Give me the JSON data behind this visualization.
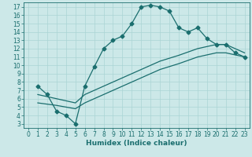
{
  "xlabel": "Humidex (Indice chaleur)",
  "bg_color": "#cce8e8",
  "line_color": "#1a6e6e",
  "xlim": [
    -0.5,
    23.5
  ],
  "ylim": [
    2.5,
    17.5
  ],
  "xticks": [
    0,
    1,
    2,
    3,
    4,
    5,
    6,
    7,
    8,
    9,
    10,
    11,
    12,
    13,
    14,
    15,
    16,
    17,
    18,
    19,
    20,
    21,
    22,
    23
  ],
  "yticks": [
    3,
    4,
    5,
    6,
    7,
    8,
    9,
    10,
    11,
    12,
    13,
    14,
    15,
    16,
    17
  ],
  "curve1_x": [
    1,
    2,
    3,
    4,
    5,
    6,
    7,
    8,
    9,
    10,
    11,
    12,
    13,
    14,
    15,
    16,
    17,
    18,
    19,
    20,
    21,
    22,
    23
  ],
  "curve1_y": [
    7.5,
    6.5,
    4.5,
    4.0,
    3.0,
    7.5,
    9.8,
    12.0,
    13.0,
    13.5,
    15.0,
    17.0,
    17.2,
    17.0,
    16.5,
    14.5,
    14.0,
    14.5,
    13.2,
    12.5,
    12.5,
    11.5,
    11.0
  ],
  "line2_x": [
    1,
    3,
    5,
    6,
    8,
    10,
    12,
    14,
    16,
    18,
    20,
    21,
    23
  ],
  "line2_y": [
    6.5,
    6.0,
    5.5,
    6.5,
    7.5,
    8.5,
    9.5,
    10.5,
    11.2,
    12.0,
    12.5,
    12.5,
    11.5
  ],
  "line3_x": [
    1,
    3,
    5,
    6,
    8,
    10,
    12,
    14,
    16,
    18,
    20,
    21,
    23
  ],
  "line3_y": [
    5.5,
    5.2,
    4.8,
    5.5,
    6.5,
    7.5,
    8.5,
    9.5,
    10.2,
    11.0,
    11.5,
    11.5,
    11.0
  ],
  "markersize": 2.5,
  "linewidth": 0.9,
  "grid_color": "#aad4d4",
  "tick_fontsize": 5.5,
  "xlabel_fontsize": 6.5
}
